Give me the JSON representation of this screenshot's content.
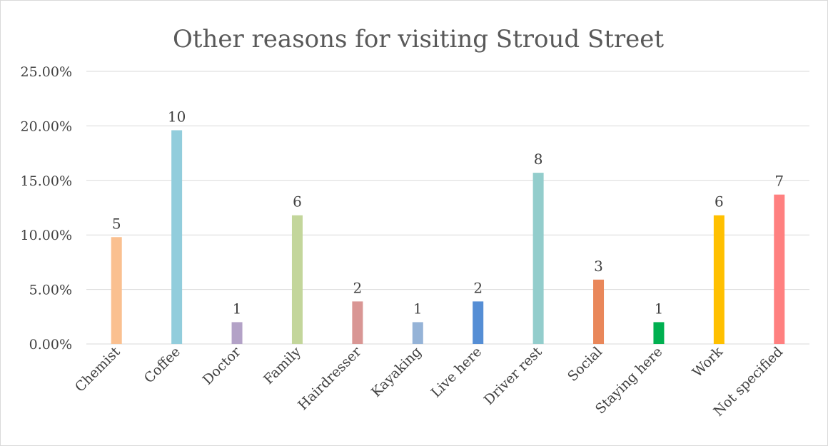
{
  "chart_data": {
    "type": "bar",
    "title": "Other reasons for visiting Stroud Street",
    "xlabel": "",
    "ylabel": "",
    "ylim": [
      0,
      0.25
    ],
    "yticks": [
      0,
      0.05,
      0.1,
      0.15,
      0.2,
      0.25
    ],
    "ytick_labels": [
      "0.00%",
      "5.00%",
      "10.00%",
      "15.00%",
      "20.00%",
      "25.00%"
    ],
    "grid": true,
    "legend": "none",
    "categories": [
      "Chemist",
      "Coffee",
      "Doctor",
      "Family",
      "Hairdresser",
      "Kayaking",
      "Live here",
      "Driver rest",
      "Social",
      "Staying here",
      "Work",
      "Not specified"
    ],
    "values": [
      0.098,
      0.196,
      0.02,
      0.118,
      0.039,
      0.02,
      0.039,
      0.157,
      0.059,
      0.02,
      0.118,
      0.137
    ],
    "data_labels": [
      "5",
      "10",
      "1",
      "6",
      "2",
      "1",
      "2",
      "8",
      "3",
      "1",
      "6",
      "7"
    ],
    "colors": [
      "#FAC090",
      "#92CDDC",
      "#B3A2C7",
      "#C3D69B",
      "#D99694",
      "#95B3D7",
      "#558ED5",
      "#93CDCC",
      "#E9875A",
      "#00B050",
      "#FFC000",
      "#FF8080"
    ]
  }
}
